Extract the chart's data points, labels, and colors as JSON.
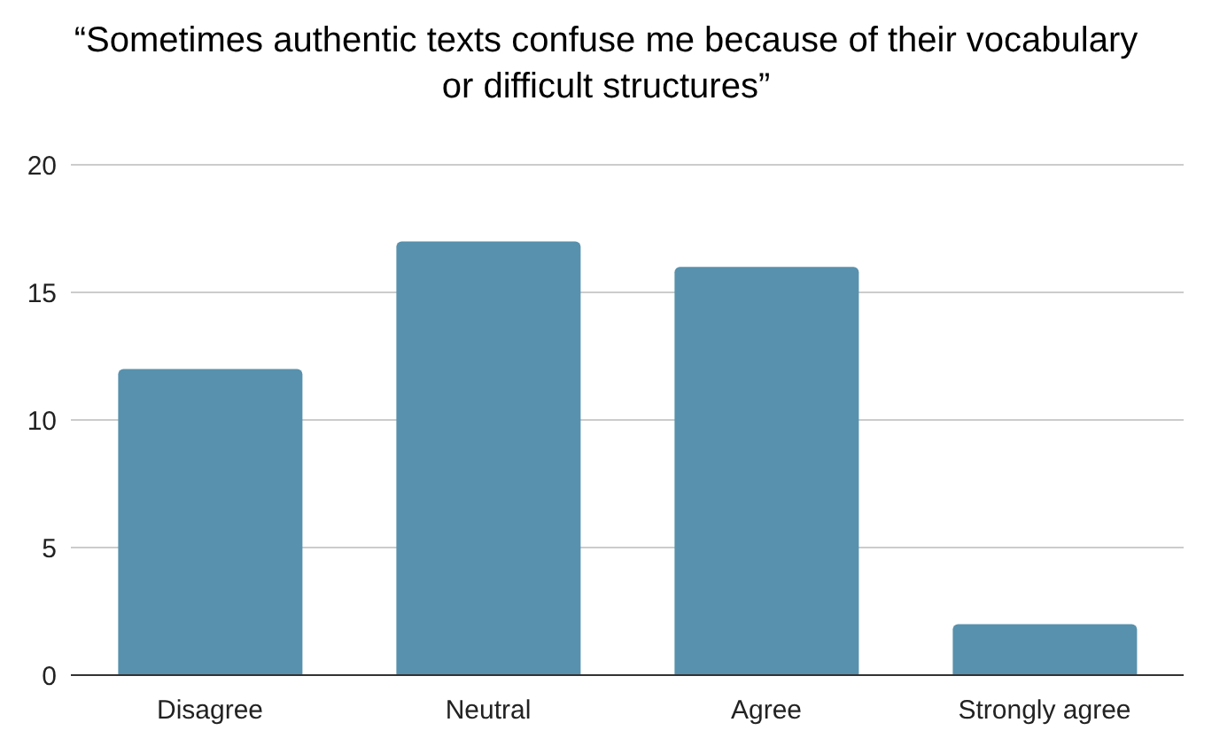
{
  "chart_data": {
    "type": "bar",
    "title": "“Sometimes authentic texts confuse me because of their vocabulary or difficult structures”",
    "categories": [
      "Disagree",
      "Neutral",
      "Agree",
      "Strongly agree"
    ],
    "values": [
      12,
      17,
      16,
      2
    ],
    "color": "#5891ad",
    "ylim": [
      0,
      20
    ],
    "yticks": [
      0,
      5,
      10,
      15,
      20
    ],
    "grid": "y",
    "legend": false
  }
}
